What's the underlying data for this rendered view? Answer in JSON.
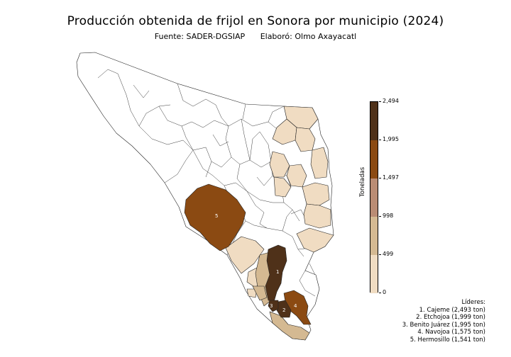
{
  "title": "Producción obtenida de frijol en Sonora por municipio (2024)",
  "source": "Fuente: SADER-DGSIAP",
  "author": "Elaboró: Olmo Axayacatl",
  "legend": {
    "label": "Toneladas",
    "ticks": [
      "0",
      "499",
      "998",
      "1,497",
      "1,995",
      "2,494"
    ],
    "tick_values": [
      0,
      499,
      998,
      1497,
      1995,
      2494
    ],
    "colors": [
      "#f0dcc2",
      "#d4b992",
      "#ba8c74",
      "#8b4a12",
      "#4f3119"
    ]
  },
  "leaders": {
    "heading": "Líderes:",
    "items": [
      "1. Cajeme (2,493 ton)",
      "2. Etchojoa (1,999 ton)",
      "3. Benito Juárez (1,995 ton)",
      "4. Navojoa (1,575 ton)",
      "5. Hermosillo (1,541 ton)"
    ]
  },
  "map_labels": {
    "r1": "1",
    "r2": "2",
    "r3": "3",
    "r4": "4",
    "r5": "5"
  }
}
